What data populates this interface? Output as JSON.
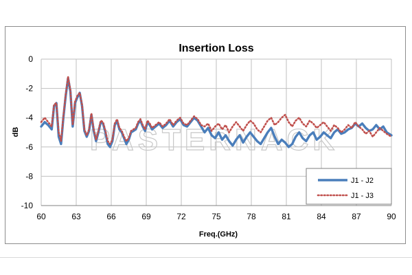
{
  "chart_data": {
    "type": "line",
    "title": "Insertion Loss",
    "xlabel": "Freq.(GHz)",
    "ylabel": "dB",
    "xlim": [
      60,
      90
    ],
    "ylim": [
      -10,
      0
    ],
    "x_ticks": [
      "60",
      "63",
      "66",
      "69",
      "72",
      "75",
      "78",
      "81",
      "84",
      "87",
      "90"
    ],
    "y_ticks": [
      "0",
      "-2",
      "-4",
      "-6",
      "-8",
      "-10"
    ],
    "grid": true,
    "legend_position": "bottom-right",
    "watermark": "PASTERNACK",
    "series": [
      {
        "name": "J1 - J2",
        "color": "#4a7ebb",
        "style": "solid",
        "x": [
          60.0,
          60.3,
          60.6,
          60.9,
          61.1,
          61.3,
          61.5,
          61.7,
          61.9,
          62.1,
          62.3,
          62.5,
          62.7,
          62.9,
          63.1,
          63.3,
          63.5,
          63.7,
          63.9,
          64.1,
          64.3,
          64.5,
          64.7,
          64.9,
          65.1,
          65.3,
          65.5,
          65.7,
          65.9,
          66.1,
          66.3,
          66.5,
          66.7,
          66.9,
          67.1,
          67.3,
          67.5,
          67.7,
          67.9,
          68.1,
          68.3,
          68.5,
          68.7,
          68.9,
          69.1,
          69.3,
          69.5,
          69.8,
          70.1,
          70.4,
          70.7,
          71.0,
          71.3,
          71.6,
          71.9,
          72.2,
          72.5,
          72.8,
          73.1,
          73.4,
          73.7,
          74.0,
          74.3,
          74.6,
          74.9,
          75.2,
          75.5,
          75.8,
          76.1,
          76.4,
          76.7,
          77.0,
          77.3,
          77.6,
          77.9,
          78.2,
          78.5,
          78.8,
          79.1,
          79.4,
          79.7,
          80.0,
          80.3,
          80.6,
          80.9,
          81.2,
          81.5,
          81.8,
          82.1,
          82.4,
          82.7,
          83.0,
          83.3,
          83.6,
          83.9,
          84.2,
          84.5,
          84.8,
          85.1,
          85.4,
          85.7,
          86.0,
          86.3,
          86.6,
          86.9,
          87.2,
          87.5,
          87.8,
          88.1,
          88.4,
          88.7,
          89.0,
          89.3,
          89.6,
          90.0
        ],
        "y": [
          -4.6,
          -4.3,
          -4.5,
          -4.8,
          -3.2,
          -3.0,
          -5.3,
          -5.8,
          -4.0,
          -2.5,
          -1.3,
          -2.2,
          -4.6,
          -3.0,
          -2.6,
          -2.3,
          -3.2,
          -4.9,
          -5.3,
          -4.9,
          -3.8,
          -4.9,
          -5.6,
          -5.0,
          -4.3,
          -4.4,
          -5.0,
          -5.8,
          -6.0,
          -5.6,
          -4.5,
          -4.2,
          -4.8,
          -5.0,
          -5.4,
          -5.8,
          -5.5,
          -5.0,
          -4.9,
          -4.8,
          -4.4,
          -4.2,
          -4.6,
          -4.9,
          -4.3,
          -4.5,
          -4.8,
          -4.6,
          -4.4,
          -4.7,
          -4.5,
          -4.2,
          -4.6,
          -4.3,
          -4.1,
          -4.5,
          -4.6,
          -4.3,
          -4.0,
          -4.2,
          -4.6,
          -5.0,
          -4.7,
          -5.2,
          -5.4,
          -5.0,
          -5.5,
          -5.2,
          -5.6,
          -5.9,
          -5.5,
          -5.2,
          -5.7,
          -5.3,
          -5.0,
          -5.3,
          -5.6,
          -5.8,
          -5.4,
          -5.0,
          -4.7,
          -5.3,
          -5.8,
          -5.5,
          -5.7,
          -6.0,
          -5.8,
          -5.3,
          -5.0,
          -5.4,
          -5.6,
          -5.2,
          -5.0,
          -5.5,
          -5.3,
          -5.0,
          -5.2,
          -5.4,
          -5.0,
          -4.8,
          -5.1,
          -5.0,
          -4.8,
          -4.7,
          -4.4,
          -4.6,
          -4.4,
          -4.7,
          -4.9,
          -4.8,
          -4.5,
          -4.8,
          -4.6,
          -5.0,
          -5.2
        ]
      },
      {
        "name": "J1 - J3",
        "color": "#c0504d",
        "style": "dotted",
        "x": [
          60.0,
          60.3,
          60.6,
          60.9,
          61.1,
          61.3,
          61.5,
          61.7,
          61.9,
          62.1,
          62.3,
          62.5,
          62.7,
          62.9,
          63.1,
          63.3,
          63.5,
          63.7,
          63.9,
          64.1,
          64.3,
          64.5,
          64.7,
          64.9,
          65.1,
          65.3,
          65.5,
          65.7,
          65.9,
          66.1,
          66.3,
          66.5,
          66.7,
          66.9,
          67.1,
          67.3,
          67.5,
          67.7,
          67.9,
          68.1,
          68.3,
          68.5,
          68.7,
          68.9,
          69.1,
          69.3,
          69.5,
          69.8,
          70.1,
          70.4,
          70.7,
          71.0,
          71.3,
          71.6,
          71.9,
          72.2,
          72.5,
          72.8,
          73.1,
          73.4,
          73.7,
          74.0,
          74.3,
          74.6,
          74.9,
          75.2,
          75.5,
          75.8,
          76.1,
          76.4,
          76.7,
          77.0,
          77.3,
          77.6,
          77.9,
          78.2,
          78.5,
          78.8,
          79.1,
          79.4,
          79.7,
          80.0,
          80.3,
          80.6,
          80.9,
          81.2,
          81.5,
          81.8,
          82.1,
          82.4,
          82.7,
          83.0,
          83.3,
          83.6,
          83.9,
          84.2,
          84.5,
          84.8,
          85.1,
          85.4,
          85.7,
          86.0,
          86.3,
          86.6,
          86.9,
          87.2,
          87.5,
          87.8,
          88.1,
          88.4,
          88.7,
          89.0,
          89.3,
          89.6,
          90.0
        ],
        "y": [
          -4.3,
          -4.0,
          -4.3,
          -4.6,
          -3.1,
          -3.0,
          -5.0,
          -5.6,
          -3.9,
          -2.4,
          -1.2,
          -2.1,
          -4.5,
          -2.9,
          -2.5,
          -2.3,
          -3.1,
          -4.8,
          -5.2,
          -4.8,
          -3.7,
          -4.8,
          -5.5,
          -4.9,
          -4.2,
          -4.3,
          -4.9,
          -5.6,
          -5.8,
          -5.5,
          -4.4,
          -4.1,
          -4.7,
          -4.9,
          -5.3,
          -5.6,
          -5.4,
          -4.9,
          -4.8,
          -4.7,
          -4.3,
          -4.1,
          -4.5,
          -4.8,
          -4.2,
          -4.4,
          -4.7,
          -4.5,
          -4.3,
          -4.6,
          -4.4,
          -4.1,
          -4.5,
          -4.2,
          -4.0,
          -4.4,
          -4.5,
          -4.2,
          -3.9,
          -4.1,
          -4.5,
          -4.6,
          -4.4,
          -4.9,
          -4.6,
          -4.4,
          -4.8,
          -4.5,
          -5.0,
          -4.6,
          -4.3,
          -4.6,
          -4.9,
          -4.5,
          -4.2,
          -4.4,
          -4.8,
          -5.0,
          -4.6,
          -4.2,
          -4.0,
          -4.5,
          -4.3,
          -4.0,
          -3.8,
          -4.3,
          -4.6,
          -4.2,
          -4.0,
          -4.4,
          -4.6,
          -4.2,
          -4.4,
          -4.7,
          -4.5,
          -4.3,
          -4.6,
          -4.9,
          -4.5,
          -4.7,
          -5.0,
          -4.8,
          -4.5,
          -4.7,
          -4.3,
          -4.6,
          -4.8,
          -5.1,
          -4.9,
          -5.3,
          -5.0,
          -4.7,
          -4.9,
          -5.1,
          -5.3
        ]
      }
    ]
  }
}
